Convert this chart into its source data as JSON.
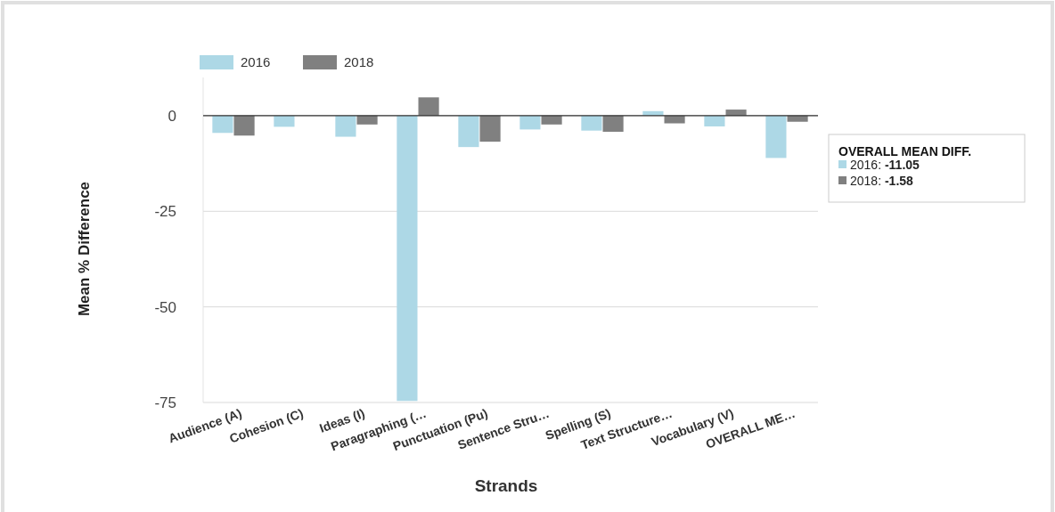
{
  "chart_data": {
    "type": "bar",
    "xlabel": "Strands",
    "ylabel": "Mean % Difference",
    "categories": [
      "Audience (A)",
      "Cohesion (C)",
      "Ideas (I)",
      "Paragraphing (…",
      "Punctuation (Pu)",
      "Sentence Stru…",
      "Spelling (S)",
      "Text Structure…",
      "Vocabulary (V)",
      "OVERALL ME…"
    ],
    "series": [
      {
        "name": "2016",
        "color": "#add8e6",
        "values": [
          -4.5,
          -2.9,
          -5.5,
          -74.6,
          -8.2,
          -3.6,
          -3.9,
          1.2,
          -2.8,
          -11.05
        ]
      },
      {
        "name": "2018",
        "color": "#808080",
        "values": [
          -5.2,
          0,
          -2.3,
          4.8,
          -6.8,
          -2.3,
          -4.2,
          -2.0,
          1.6,
          -1.58
        ]
      }
    ],
    "ylim": [
      -75,
      10
    ],
    "yticks": [
      0,
      -25,
      -50,
      -75
    ],
    "grid": "y",
    "legend": "top left",
    "annotations": [
      "OVERALL MEAN DIFF.",
      "2016: -11.05",
      "2018: -1.58"
    ]
  }
}
